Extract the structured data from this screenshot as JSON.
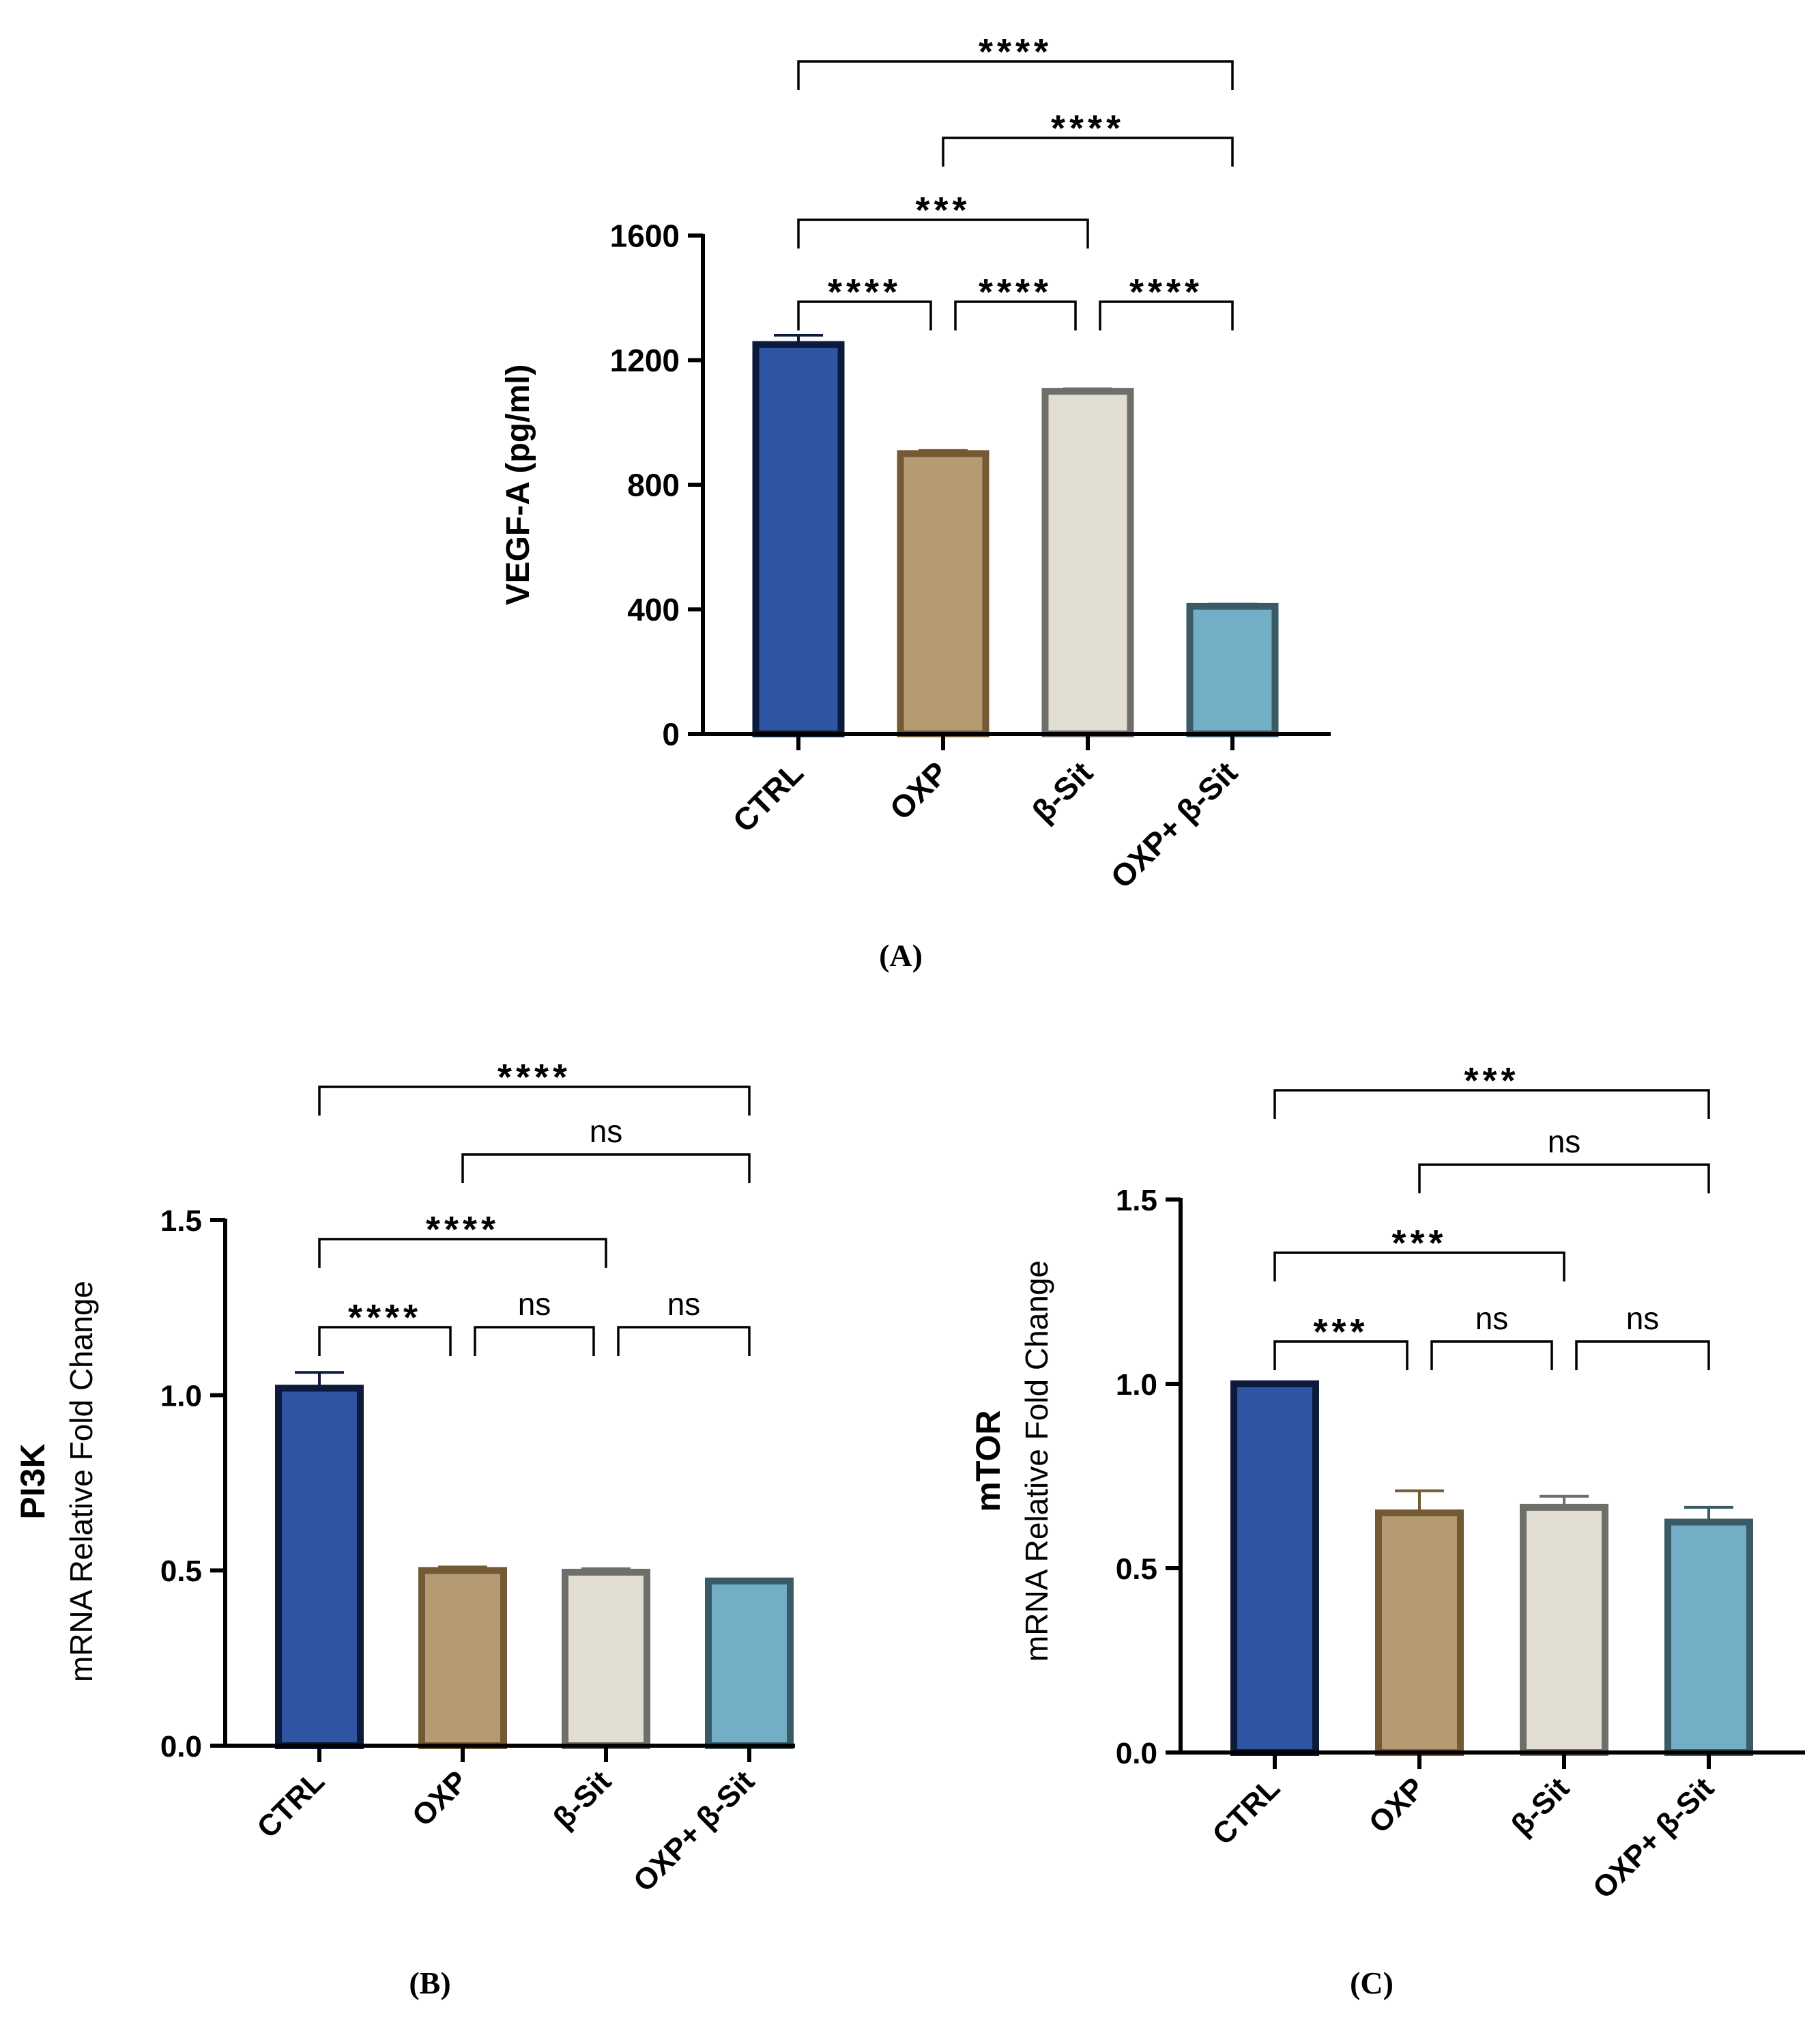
{
  "colors": {
    "ctrl_fill": "#2e55a1",
    "ctrl_edge": "#0c1a3d",
    "oxp_fill": "#b59b71",
    "oxp_edge": "#735a35",
    "bsit_fill": "#e2ddd2",
    "bsit_edge": "#6e6e6a",
    "combo_fill": "#72afc7",
    "combo_edge": "#3a5b66"
  },
  "chart_data": [
    {
      "panel": "(A)",
      "type": "bar",
      "ylabel": "VEGF-A (pg/ml)",
      "ylabel_sub": "",
      "categories": [
        "CTRL",
        "OXP",
        "β-Sit",
        "OXP+ β-Sit"
      ],
      "values": [
        1250,
        900,
        1100,
        410
      ],
      "errors": [
        30,
        10,
        8,
        7
      ],
      "ylim": [
        0,
        1600
      ],
      "yticks": [
        "0",
        "400",
        "800",
        "1200",
        "1600"
      ],
      "ytick_values": [
        0,
        400,
        800,
        1200,
        1600
      ],
      "comparisons": [
        {
          "groups": [
            "CTRL",
            "OXP"
          ],
          "label": "****"
        },
        {
          "groups": [
            "OXP",
            "β-Sit"
          ],
          "label": "****"
        },
        {
          "groups": [
            "β-Sit",
            "OXP+ β-Sit"
          ],
          "label": "****"
        },
        {
          "groups": [
            "CTRL",
            "β-Sit"
          ],
          "label": "***"
        },
        {
          "groups": [
            "OXP",
            "OXP+ β-Sit"
          ],
          "label": "****"
        },
        {
          "groups": [
            "CTRL",
            "OXP+ β-Sit"
          ],
          "label": "****"
        }
      ]
    },
    {
      "panel": "(B)",
      "type": "bar",
      "ylabel": "PI3K",
      "ylabel_sub": "mRNA Relative Fold Change",
      "categories": [
        "CTRL",
        "OXP",
        "β-Sit",
        "OXP+ β-Sit"
      ],
      "values": [
        1.02,
        0.5,
        0.495,
        0.47
      ],
      "errors": [
        0.045,
        0.01,
        0.01,
        0.003
      ],
      "ylim": [
        0,
        1.5
      ],
      "yticks": [
        "0.0",
        "0.5",
        "1.0",
        "1.5"
      ],
      "ytick_values": [
        0,
        0.5,
        1.0,
        1.5
      ],
      "comparisons": [
        {
          "groups": [
            "CTRL",
            "OXP"
          ],
          "label": "****"
        },
        {
          "groups": [
            "OXP",
            "β-Sit"
          ],
          "label": "ns"
        },
        {
          "groups": [
            "β-Sit",
            "OXP+ β-Sit"
          ],
          "label": "ns"
        },
        {
          "groups": [
            "CTRL",
            "β-Sit"
          ],
          "label": "****"
        },
        {
          "groups": [
            "OXP",
            "OXP+ β-Sit"
          ],
          "label": "ns"
        },
        {
          "groups": [
            "CTRL",
            "OXP+ β-Sit"
          ],
          "label": "****"
        }
      ]
    },
    {
      "panel": "(C)",
      "type": "bar",
      "ylabel": "mTOR",
      "ylabel_sub": "mRNA Relative Fold Change",
      "categories": [
        "CTRL",
        "OXP",
        "β-Sit",
        "OXP+ β-Sit"
      ],
      "values": [
        1.0,
        0.65,
        0.665,
        0.625
      ],
      "errors": [
        0,
        0.06,
        0.03,
        0.04
      ],
      "ylim": [
        0,
        1.5
      ],
      "yticks": [
        "0.0",
        "0.5",
        "1.0",
        "1.5"
      ],
      "ytick_values": [
        0,
        0.5,
        1.0,
        1.5
      ],
      "comparisons": [
        {
          "groups": [
            "CTRL",
            "OXP"
          ],
          "label": "***"
        },
        {
          "groups": [
            "OXP",
            "β-Sit"
          ],
          "label": "ns"
        },
        {
          "groups": [
            "β-Sit",
            "OXP+ β-Sit"
          ],
          "label": "ns"
        },
        {
          "groups": [
            "CTRL",
            "β-Sit"
          ],
          "label": "***"
        },
        {
          "groups": [
            "OXP",
            "OXP+ β-Sit"
          ],
          "label": "ns"
        },
        {
          "groups": [
            "CTRL",
            "OXP+ β-Sit"
          ],
          "label": "***"
        }
      ]
    }
  ]
}
